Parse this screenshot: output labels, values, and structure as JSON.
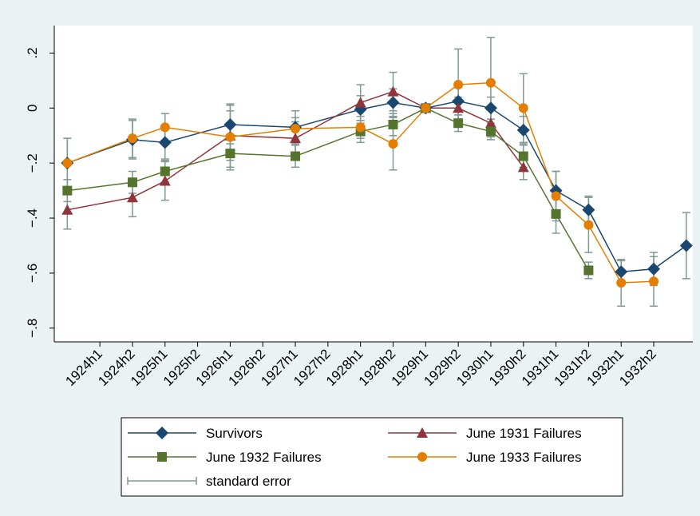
{
  "chart_data": {
    "type": "line",
    "xlim": [
      1923.3,
      1933.1
    ],
    "ylim": [
      -0.85,
      0.3
    ],
    "yticks": [
      {
        "value": 0.2,
        "label": ".2"
      },
      0,
      {
        "value": -0.2,
        "label": "−.2"
      },
      {
        "value": -0.4,
        "label": "−.4"
      },
      {
        "value": -0.6,
        "label": "−.6"
      },
      {
        "value": -0.8,
        "label": "−.8"
      }
    ],
    "xticks": [
      {
        "value": 1924,
        "label": "1924h1"
      },
      {
        "value": 1924.5,
        "label": "1924h2"
      },
      {
        "value": 1925,
        "label": "1925h1"
      },
      {
        "value": 1925.5,
        "label": "1925h2"
      },
      {
        "value": 1926,
        "label": "1926h1"
      },
      {
        "value": 1926.5,
        "label": "1926h2"
      },
      {
        "value": 1927,
        "label": "1927h1"
      },
      {
        "value": 1927.5,
        "label": "1927h2"
      },
      {
        "value": 1928,
        "label": "1928h1"
      },
      {
        "value": 1928.5,
        "label": "1928h2"
      },
      {
        "value": 1929,
        "label": "1929h1"
      },
      {
        "value": 1929.5,
        "label": "1929h2"
      },
      {
        "value": 1930,
        "label": "1930h1"
      },
      {
        "value": 1930.5,
        "label": "1930h2"
      },
      {
        "value": 1931,
        "label": "1931h1"
      },
      {
        "value": 1931.5,
        "label": "1931h2"
      },
      {
        "value": 1932,
        "label": "1932h1"
      },
      {
        "value": 1932.5,
        "label": "1932h2"
      }
    ],
    "grid": false,
    "error_color": "#7f9995",
    "error_label": "standard error",
    "series": [
      {
        "name": "Survivors",
        "color": "#1a476f",
        "marker": "diamond",
        "x": [
          1923.5,
          1924.5,
          1925,
          1926,
          1927,
          1928,
          1928.5,
          1929,
          1929.5,
          1930,
          1930.5,
          1931,
          1931.5,
          1932,
          1932.5,
          1933
        ],
        "values": [
          -0.2,
          -0.115,
          -0.125,
          -0.06,
          -0.07,
          -0.005,
          0.02,
          0,
          0.025,
          0,
          -0.08,
          -0.3,
          -0.37,
          -0.595,
          -0.585,
          -0.5
        ],
        "errors": [
          0.09,
          0.07,
          0.06,
          0.07,
          0.06,
          0.05,
          0.05,
          null,
          0.05,
          0.04,
          0.05,
          0.07,
          0.05,
          0.04,
          0.06,
          0.12
        ]
      },
      {
        "name": "June 1931 Failures",
        "color": "#90353b",
        "marker": "triangle",
        "x": [
          1923.5,
          1924.5,
          1925,
          1926,
          1927,
          1928,
          1928.5,
          1929,
          1929.5,
          1930,
          1930.5
        ],
        "values": [
          -0.37,
          -0.325,
          -0.265,
          -0.1,
          -0.11,
          0.02,
          0.06,
          0,
          0,
          -0.055,
          -0.215
        ],
        "errors": [
          0.07,
          0.07,
          0.07,
          0.09,
          0.06,
          0.065,
          0.07,
          null,
          0.04,
          0.05,
          0.045
        ]
      },
      {
        "name": "June 1932 Failures",
        "color": "#55752f",
        "marker": "square",
        "x": [
          1923.5,
          1924.5,
          1925,
          1926,
          1927,
          1928,
          1928.5,
          1929,
          1929.5,
          1930,
          1930.5,
          1931,
          1931.5
        ],
        "values": [
          -0.3,
          -0.27,
          -0.23,
          -0.165,
          -0.175,
          -0.085,
          -0.06,
          0,
          -0.055,
          -0.085,
          -0.175,
          -0.385,
          -0.59
        ],
        "errors": [
          0.04,
          0.04,
          0.04,
          0.05,
          0.04,
          0.04,
          0.04,
          null,
          0.03,
          0.03,
          0.04,
          0.07,
          0.03
        ]
      },
      {
        "name": "June 1933 Failures",
        "color": "#e37e00",
        "marker": "circle",
        "x": [
          1923.5,
          1924.5,
          1925,
          1926,
          1927,
          1928,
          1928.5,
          1929,
          1929.5,
          1930,
          1930.5,
          1931,
          1931.5,
          1932,
          1932.5
        ],
        "values": [
          -0.2,
          -0.11,
          -0.07,
          -0.105,
          -0.075,
          -0.07,
          -0.13,
          0,
          0.085,
          0.092,
          0,
          -0.32,
          -0.425,
          -0.635,
          -0.63
        ],
        "errors": [
          0.09,
          0.07,
          0.05,
          0.12,
          0.04,
          0.04,
          0.095,
          null,
          0.13,
          0.165,
          0.125,
          0.09,
          0.1,
          0.085,
          0.09
        ]
      }
    ]
  }
}
